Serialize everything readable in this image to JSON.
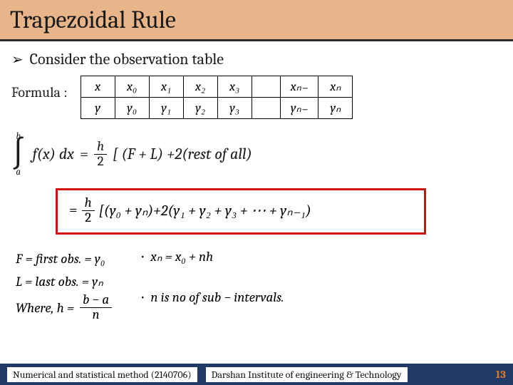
{
  "title": "Trapezoidal Rule",
  "bullet": "Consider the observation table",
  "formula_label": "Formula :",
  "table": {
    "row1": [
      "x",
      "x₀",
      "x₁",
      "x₂",
      "x₃",
      "",
      "xₙ₋",
      "xₙ"
    ],
    "row2": [
      "y",
      "y₀",
      "y₁",
      "y₂",
      "y₃",
      "",
      "yₙ₋",
      "yₙ"
    ]
  },
  "integral": {
    "upper": "b",
    "lower": "a",
    "body": "f(x) dx"
  },
  "frac": {
    "num": "h",
    "den": "2"
  },
  "main_eq_tail": "[ (F + L) +2(rest of all)",
  "boxed_tail": "[(y₀ + yₙ)+2(y₁ + y₂ + y₃ + ⋯ + yₙ₋₁)",
  "defs": {
    "F": "F = first obs. = y₀",
    "L": "L = last obs. = yₙ",
    "where": "Where, h ="
  },
  "hfrac": {
    "num": "b − a",
    "den": "n"
  },
  "side": {
    "xn": "xₙ = x₀ + nh",
    "n": "n is no of sub − intervals."
  },
  "footer": {
    "course": "Numerical and statistical method  (2140706)",
    "inst": "Darshan Institute of engineering & Technology",
    "page": "13"
  },
  "colors": {
    "title_bg": "#e8b48a",
    "footer_bg": "#1f3a66",
    "box_border": "#d01010",
    "page_num": "#dd7a2b"
  }
}
